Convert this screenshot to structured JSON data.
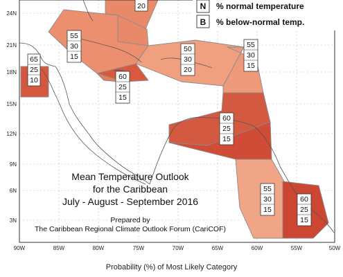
{
  "legend": {
    "rows": [
      {
        "key": "N",
        "label": "% normal temperature"
      },
      {
        "key": "B",
        "label": "% below-normal temp."
      }
    ]
  },
  "lat_labels": [
    "24N",
    "21N",
    "18N",
    "15N",
    "12N",
    "9N",
    "6N",
    "3N"
  ],
  "lon_labels": [
    "90W",
    "85W",
    "80W",
    "75W",
    "70W",
    "65W",
    "60W",
    "55W",
    "50W"
  ],
  "title": {
    "line1": "Mean Temperature Outlook",
    "line2": "for the Caribbean",
    "line3": "July - August - September 2016",
    "prepared": "Prepared by",
    "forum": "The Caribbean Regional Climate Outlook Forum (CariCOF)"
  },
  "footer": "Probability (%) of Most Likely Category",
  "colors": {
    "light": "#f2a382",
    "medium": "#e57c5e",
    "dark": "#d4573f",
    "darkest": "#cf4a35",
    "region_border": "#8a8a8a",
    "coast": "#555555"
  },
  "region_boxes": [
    {
      "id": "bahamas",
      "values": [
        "20"
      ]
    },
    {
      "id": "belize",
      "values": [
        "65",
        "25",
        "10"
      ]
    },
    {
      "id": "cuba",
      "values": [
        "55",
        "30",
        "15"
      ]
    },
    {
      "id": "jamaica",
      "values": [
        "60",
        "25",
        "15"
      ]
    },
    {
      "id": "hispaniola",
      "values": [
        "50",
        "30",
        "20"
      ]
    },
    {
      "id": "lesser-antilles",
      "values": [
        "55",
        "30",
        "15"
      ]
    },
    {
      "id": "trinidad",
      "values": [
        "60",
        "25",
        "15"
      ]
    },
    {
      "id": "guyana",
      "values": [
        "55",
        "30",
        "15"
      ]
    },
    {
      "id": "suriname",
      "values": [
        "60",
        "25",
        "15"
      ]
    }
  ]
}
